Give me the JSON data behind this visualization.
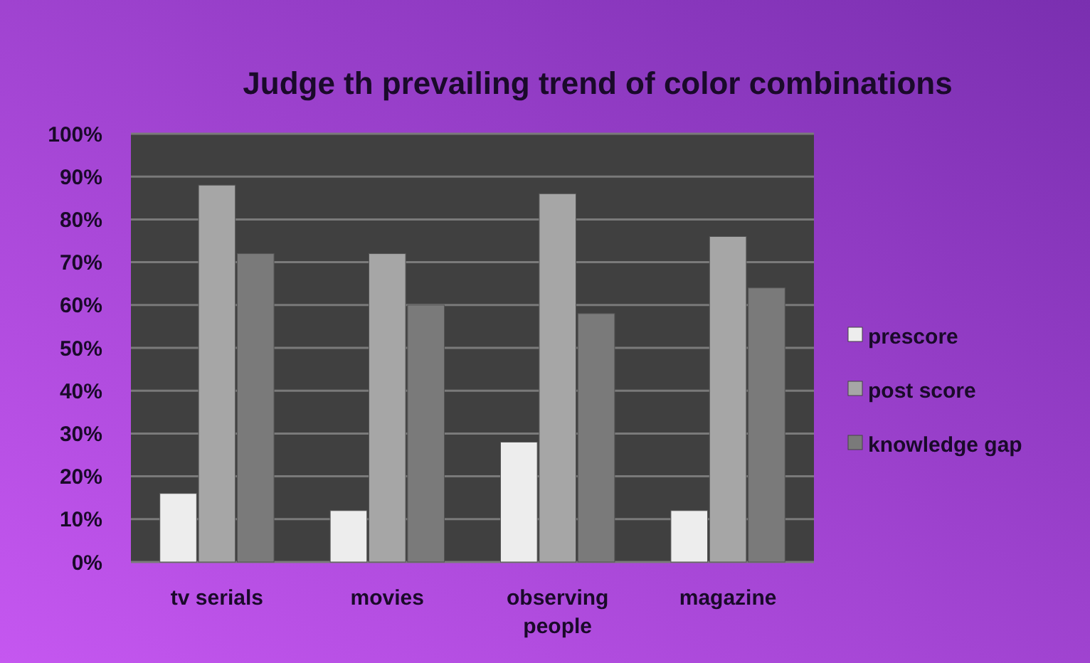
{
  "chart_data": {
    "type": "bar",
    "title": "Judge th prevailing trend of color combinations",
    "categories": [
      "tv serials",
      "movies",
      "observing people",
      "magazine"
    ],
    "series": [
      {
        "name": "prescore",
        "color": "#ededed",
        "values": [
          16,
          12,
          28,
          12
        ]
      },
      {
        "name": "post score",
        "color": "#a6a6a6",
        "values": [
          88,
          72,
          86,
          76
        ]
      },
      {
        "name": "knowledge gap",
        "color": "#7a7a7a",
        "values": [
          72,
          60,
          58,
          64
        ]
      }
    ],
    "ylim": [
      0,
      100
    ],
    "yticks": [
      {
        "value": 0,
        "label": "0%"
      },
      {
        "value": 10,
        "label": "10%"
      },
      {
        "value": 20,
        "label": "20%"
      },
      {
        "value": 30,
        "label": "30%"
      },
      {
        "value": 40,
        "label": "40%"
      },
      {
        "value": 50,
        "label": "50%"
      },
      {
        "value": 60,
        "label": "60%"
      },
      {
        "value": 70,
        "label": "70%"
      },
      {
        "value": 80,
        "label": "80%"
      },
      {
        "value": 90,
        "label": "90%"
      },
      {
        "value": 100,
        "label": "100%"
      }
    ],
    "grid": "y",
    "legend": "right"
  }
}
